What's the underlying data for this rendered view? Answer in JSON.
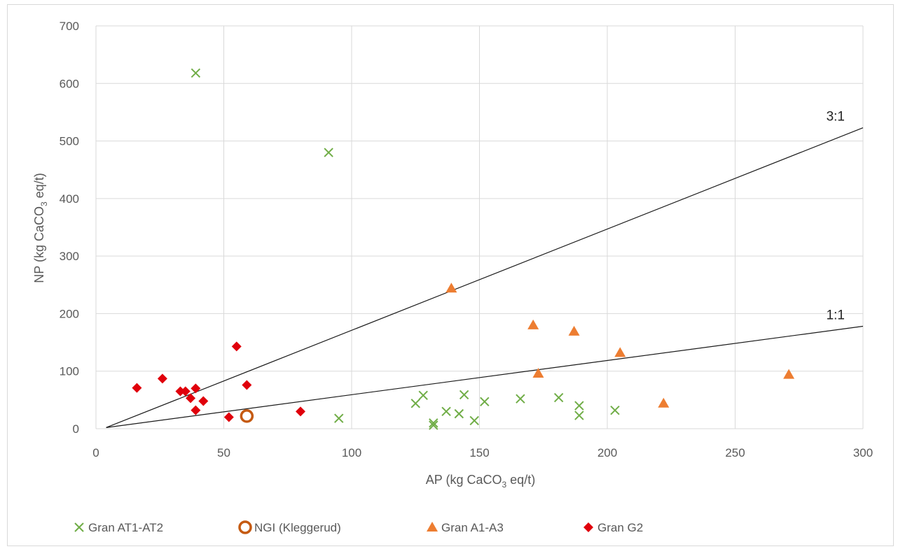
{
  "chart_data": {
    "type": "scatter",
    "title": "",
    "xlabel": {
      "main": "AP (kg CaCO",
      "sub": "3",
      "tail": " eq/t)"
    },
    "ylabel": {
      "main": "NP (kg CaCO",
      "sub": "3",
      "tail": " eq/t)"
    },
    "xlim": [
      0,
      300
    ],
    "ylim": [
      0,
      700
    ],
    "x_ticks": [
      0,
      50,
      100,
      150,
      200,
      250,
      300
    ],
    "y_ticks": [
      0,
      100,
      200,
      300,
      400,
      500,
      600,
      700
    ],
    "grid": {
      "vertical": true,
      "horizontal": true,
      "color": "#d9d9d9"
    },
    "legend_position": "bottom",
    "reference_lines": [
      {
        "label": "3:1",
        "points": [
          [
            4,
            2
          ],
          [
            300,
            523
          ]
        ]
      },
      {
        "label": "1:1",
        "points": [
          [
            4,
            2
          ],
          [
            300,
            178
          ]
        ]
      }
    ],
    "series": [
      {
        "name": "Gran AT1-AT2",
        "marker": "x",
        "color": "#70ad47",
        "points": [
          [
            39,
            618
          ],
          [
            91,
            480
          ],
          [
            95,
            18
          ],
          [
            125,
            44
          ],
          [
            128,
            58
          ],
          [
            132,
            10
          ],
          [
            132,
            6
          ],
          [
            137,
            30
          ],
          [
            142,
            26
          ],
          [
            144,
            59
          ],
          [
            148,
            14
          ],
          [
            152,
            47
          ],
          [
            166,
            52
          ],
          [
            181,
            54
          ],
          [
            189,
            40
          ],
          [
            189,
            23
          ],
          [
            203,
            32
          ]
        ]
      },
      {
        "name": "NGI (Kleggerud)",
        "marker": "ring",
        "color": "#c55a11",
        "points": [
          [
            59,
            22
          ]
        ]
      },
      {
        "name": "Gran A1-A3",
        "marker": "triangle",
        "color": "#ed7d31",
        "points": [
          [
            139,
            244
          ],
          [
            171,
            180
          ],
          [
            173,
            96
          ],
          [
            187,
            169
          ],
          [
            205,
            132
          ],
          [
            222,
            44
          ],
          [
            271,
            94
          ]
        ]
      },
      {
        "name": "Gran G2",
        "marker": "diamond",
        "color": "#e0000b",
        "points": [
          [
            16,
            71
          ],
          [
            26,
            87
          ],
          [
            33,
            65
          ],
          [
            35,
            65
          ],
          [
            37,
            53
          ],
          [
            39,
            70
          ],
          [
            39,
            32
          ],
          [
            42,
            48
          ],
          [
            52,
            20
          ],
          [
            55,
            143
          ],
          [
            59,
            76
          ],
          [
            80,
            30
          ]
        ]
      }
    ]
  }
}
